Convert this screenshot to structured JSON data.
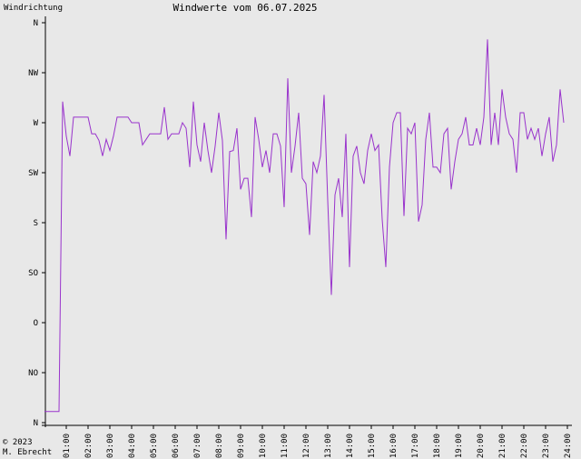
{
  "chart_data": {
    "type": "line",
    "title": "Windwerte vom 06.07.2025",
    "y_label": "Windrichtung",
    "footer": [
      "© 2023",
      "M. Ebrecht"
    ],
    "x": [
      0,
      10,
      20,
      30,
      40,
      50,
      60,
      70,
      80,
      90,
      100,
      110,
      120,
      130,
      140,
      150,
      160,
      170,
      180,
      190,
      200,
      210,
      220,
      230,
      240,
      250,
      260,
      270,
      280,
      290,
      300,
      310,
      320,
      330,
      340,
      350,
      360,
      370,
      380,
      390,
      400,
      410,
      420,
      430,
      440,
      450,
      460,
      470,
      480,
      490,
      500,
      510,
      520,
      530,
      540,
      550,
      560,
      570,
      580,
      590,
      600,
      610,
      620,
      630,
      640,
      650,
      660,
      670,
      680,
      690,
      700,
      710,
      720,
      730,
      740,
      750,
      760,
      770,
      780,
      790,
      800,
      810,
      820,
      830,
      840,
      850,
      860,
      870,
      880,
      890,
      900,
      910,
      920,
      930,
      940,
      950,
      960,
      970,
      980,
      990,
      1000,
      1010,
      1020,
      1030,
      1040,
      1050,
      1060,
      1070,
      1080,
      1090,
      1100,
      1110,
      1120,
      1130,
      1140,
      1150,
      1160,
      1170,
      1180,
      1190,
      1200,
      1210,
      1220,
      1230,
      1240,
      1250,
      1260,
      1270,
      1280,
      1290,
      1300,
      1310,
      1320,
      1330,
      1340,
      1350,
      1360,
      1370,
      1380,
      1390,
      1400,
      1410,
      1420,
      1430
    ],
    "series": [
      {
        "name": "Windrichtung",
        "color": "#9933cc",
        "values": [
          10,
          10,
          10,
          10,
          10,
          289,
          258,
          240,
          275,
          275,
          275,
          275,
          275,
          260,
          260,
          254,
          240,
          255,
          245,
          258,
          275,
          275,
          275,
          275,
          270,
          270,
          270,
          250,
          255,
          260,
          260,
          260,
          260,
          284,
          255,
          260,
          260,
          260,
          270,
          265,
          230,
          289,
          250,
          235,
          270,
          245,
          225,
          249,
          279,
          254,
          165,
          244,
          245,
          265,
          210,
          220,
          220,
          185,
          275,
          255,
          230,
          245,
          225,
          260,
          260,
          249,
          194,
          310,
          225,
          249,
          279,
          220,
          215,
          169,
          235,
          225,
          240,
          295,
          200,
          115,
          205,
          220,
          185,
          260,
          140,
          240,
          249,
          225,
          215,
          245,
          260,
          245,
          250,
          183,
          140,
          230,
          270,
          279,
          279,
          186,
          265,
          260,
          270,
          181,
          196,
          255,
          279,
          230,
          230,
          225,
          260,
          265,
          210,
          235,
          255,
          260,
          275,
          250,
          250,
          265,
          250,
          275,
          345,
          250,
          279,
          250,
          300,
          275,
          260,
          255,
          225,
          279,
          279,
          255,
          265,
          255,
          265,
          240,
          260,
          275,
          235,
          250,
          300,
          270
        ]
      }
    ],
    "xlim": [
      0,
      1440
    ],
    "xticks": [
      {
        "value": 60,
        "label": "01:00"
      },
      {
        "value": 120,
        "label": "02:00"
      },
      {
        "value": 180,
        "label": "03:00"
      },
      {
        "value": 240,
        "label": "04:00"
      },
      {
        "value": 300,
        "label": "05:00"
      },
      {
        "value": 360,
        "label": "06:00"
      },
      {
        "value": 420,
        "label": "07:00"
      },
      {
        "value": 480,
        "label": "08:00"
      },
      {
        "value": 540,
        "label": "09:00"
      },
      {
        "value": 600,
        "label": "10:00"
      },
      {
        "value": 660,
        "label": "11:00"
      },
      {
        "value": 720,
        "label": "12:00"
      },
      {
        "value": 780,
        "label": "13:00"
      },
      {
        "value": 840,
        "label": "14:00"
      },
      {
        "value": 900,
        "label": "15:00"
      },
      {
        "value": 960,
        "label": "16:00"
      },
      {
        "value": 1020,
        "label": "17:00"
      },
      {
        "value": 1080,
        "label": "18:00"
      },
      {
        "value": 1140,
        "label": "19:00"
      },
      {
        "value": 1200,
        "label": "20:00"
      },
      {
        "value": 1260,
        "label": "21:00"
      },
      {
        "value": 1320,
        "label": "22:00"
      },
      {
        "value": 1380,
        "label": "23:00"
      },
      {
        "value": 1440,
        "label": "24:00"
      }
    ],
    "ylim": [
      0,
      360
    ],
    "yticks": [
      {
        "value": 0,
        "label": "N"
      },
      {
        "value": 45,
        "label": "NO"
      },
      {
        "value": 90,
        "label": "O"
      },
      {
        "value": 135,
        "label": "SO"
      },
      {
        "value": 180,
        "label": "S"
      },
      {
        "value": 225,
        "label": "SW"
      },
      {
        "value": 270,
        "label": "W"
      },
      {
        "value": 315,
        "label": "NW"
      },
      {
        "value": 360,
        "label": "N"
      }
    ]
  }
}
